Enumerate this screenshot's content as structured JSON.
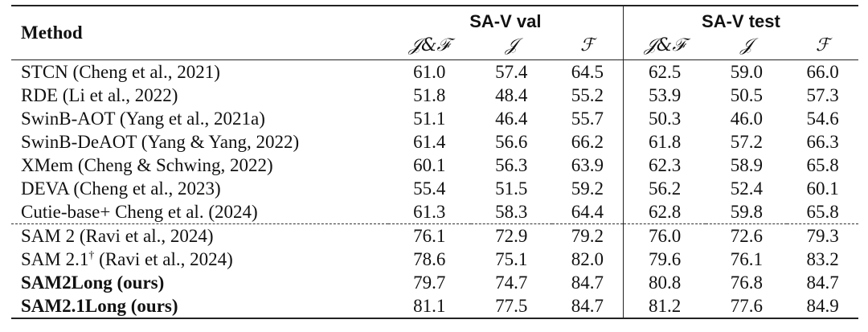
{
  "table": {
    "method_header": "Method",
    "groups": [
      "SA-V val",
      "SA-V test"
    ],
    "metrics": [
      "𝒥&ℱ",
      "𝒥",
      "ℱ",
      "𝒥&ℱ",
      "𝒥",
      "ℱ"
    ],
    "rows": [
      {
        "method": "STCN (Cheng et al., 2021)",
        "values": [
          "61.0",
          "57.4",
          "64.5",
          "62.5",
          "59.0",
          "66.0"
        ]
      },
      {
        "method": "RDE (Li et al., 2022)",
        "values": [
          "51.8",
          "48.4",
          "55.2",
          "53.9",
          "50.5",
          "57.3"
        ]
      },
      {
        "method": "SwinB-AOT (Yang et al., 2021a)",
        "values": [
          "51.1",
          "46.4",
          "55.7",
          "50.3",
          "46.0",
          "54.6"
        ]
      },
      {
        "method": "SwinB-DeAOT (Yang & Yang, 2022)",
        "values": [
          "61.4",
          "56.6",
          "66.2",
          "61.8",
          "57.2",
          "66.3"
        ]
      },
      {
        "method": "XMem (Cheng & Schwing, 2022)",
        "values": [
          "60.1",
          "56.3",
          "63.9",
          "62.3",
          "58.9",
          "65.8"
        ]
      },
      {
        "method": "DEVA (Cheng et al., 2023)",
        "values": [
          "55.4",
          "51.5",
          "59.2",
          "56.2",
          "52.4",
          "60.1"
        ]
      },
      {
        "method": "Cutie-base+ Cheng et al. (2024)",
        "values": [
          "61.3",
          "58.3",
          "64.4",
          "62.8",
          "59.8",
          "65.8"
        ]
      },
      {
        "method": "SAM 2 (Ravi et al., 2024)",
        "values": [
          "76.1",
          "72.9",
          "79.2",
          "76.0",
          "72.6",
          "79.3"
        ]
      },
      {
        "method_prefix": "SAM 2.1",
        "method_sup": "†",
        "method_suffix": " (Ravi et al., 2024)",
        "values": [
          "78.6",
          "75.1",
          "82.0",
          "79.6",
          "76.1",
          "83.2"
        ]
      },
      {
        "method": "SAM2Long (ours)",
        "values": [
          "79.7",
          "74.7",
          "84.7",
          "80.8",
          "76.8",
          "84.7"
        ]
      },
      {
        "method": "SAM2.1Long (ours)",
        "values": [
          "81.1",
          "77.5",
          "84.7",
          "81.2",
          "77.6",
          "84.9"
        ]
      }
    ]
  }
}
